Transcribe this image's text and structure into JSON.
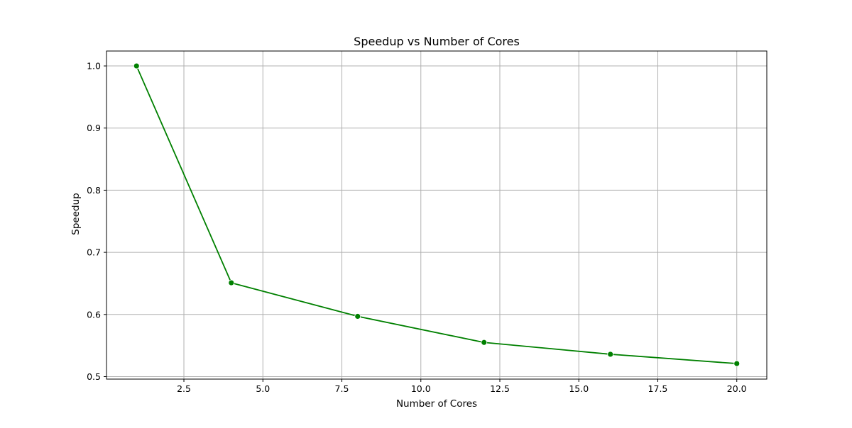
{
  "chart_data": {
    "type": "line",
    "title": "Speedup vs Number of Cores",
    "xlabel": "Number of Cores",
    "ylabel": "Speedup",
    "x": [
      1,
      4,
      8,
      12,
      16,
      20
    ],
    "series": [
      {
        "values": [
          1.0,
          0.651,
          0.597,
          0.555,
          0.536,
          0.521
        ],
        "color": "#008000",
        "marker": "circle"
      }
    ],
    "xlim": [
      0.05,
      20.95
    ],
    "ylim": [
      0.496,
      1.024
    ],
    "xticks": [
      2.5,
      5.0,
      7.5,
      10.0,
      12.5,
      15.0,
      17.5,
      20.0
    ],
    "xtick_labels": [
      "2.5",
      "5.0",
      "7.5",
      "10.0",
      "12.5",
      "15.0",
      "17.5",
      "20.0"
    ],
    "yticks": [
      0.5,
      0.6,
      0.7,
      0.8,
      0.9,
      1.0
    ],
    "ytick_labels": [
      "0.5",
      "0.6",
      "0.7",
      "0.8",
      "0.9",
      "1.0"
    ],
    "grid": true,
    "grid_color": "#b0b0b0",
    "legend": "none"
  }
}
